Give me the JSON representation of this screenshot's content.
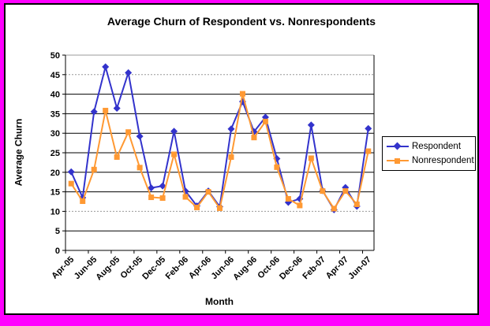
{
  "frame": {
    "border_color": "#FF00FF",
    "chart_background": "#FFFFFF",
    "chart_border_color": "#000000"
  },
  "chart_data": {
    "type": "line",
    "title": "Average Churn of Respondent vs. Nonrespondents",
    "xlabel": "Month",
    "ylabel": "Average Churn",
    "ylim": [
      0,
      50
    ],
    "y_ticks": [
      0,
      5,
      10,
      15,
      20,
      25,
      30,
      35,
      40,
      45,
      50
    ],
    "grid": true,
    "legend_position": "right",
    "x": [
      "Apr-05",
      "May-05",
      "Jun-05",
      "Jul-05",
      "Aug-05",
      "Sep-05",
      "Oct-05",
      "Nov-05",
      "Dec-05",
      "Jan-06",
      "Feb-06",
      "Mar-06",
      "Apr-06",
      "May-06",
      "Jun-06",
      "Jul-06",
      "Aug-06",
      "Sep-06",
      "Oct-06",
      "Nov-06",
      "Dec-06",
      "Jan-07",
      "Feb-07",
      "Mar-07",
      "Apr-07",
      "May-07",
      "Jun-07"
    ],
    "x_tick_labels_shown": [
      "Apr-05",
      "Jun-05",
      "Aug-05",
      "Oct-05",
      "Dec-05",
      "Feb-06",
      "Apr-06",
      "Jun-06",
      "Aug-06",
      "Oct-06",
      "Dec-06",
      "Feb-07",
      "Apr-07",
      "Jun-07"
    ],
    "series": [
      {
        "name": "Respondent",
        "color": "#3333CC",
        "marker": "diamond",
        "values": [
          20.1,
          13.5,
          35.5,
          47.0,
          36.4,
          45.5,
          29.2,
          16.0,
          16.5,
          30.5,
          15.2,
          11.4,
          15.2,
          11.2,
          31.1,
          38.1,
          30.4,
          34.1,
          23.5,
          12.3,
          13.2,
          32.1,
          15.3,
          10.4,
          16.1,
          11.3,
          31.2
        ]
      },
      {
        "name": "Nonrespondent",
        "color": "#FF9933",
        "marker": "square",
        "values": [
          17.1,
          12.6,
          20.7,
          35.8,
          23.9,
          30.3,
          21.2,
          13.6,
          13.4,
          24.6,
          13.7,
          11.0,
          15.0,
          10.8,
          23.9,
          40.1,
          28.9,
          33.0,
          21.3,
          13.2,
          11.5,
          23.6,
          15.2,
          10.7,
          15.2,
          11.8,
          25.4
        ]
      }
    ]
  }
}
